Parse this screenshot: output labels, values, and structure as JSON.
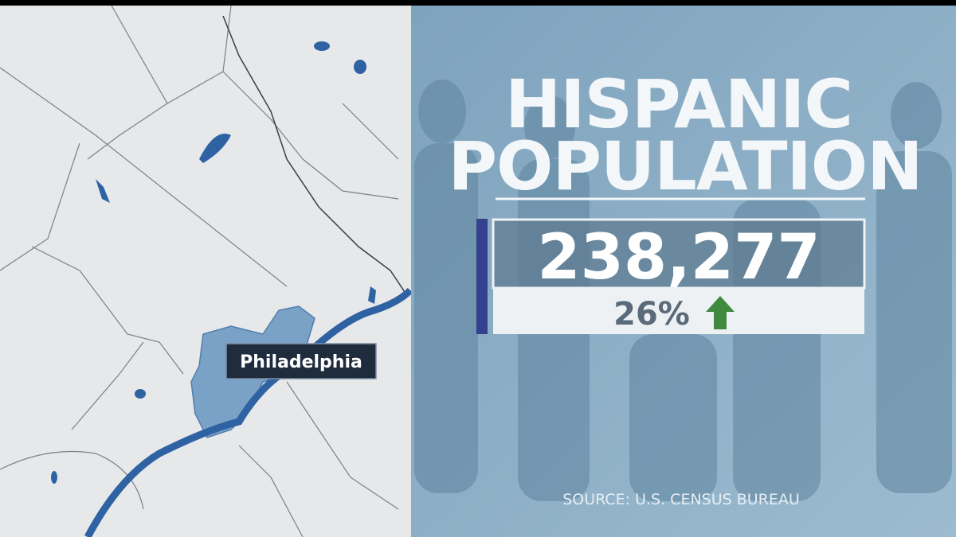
{
  "map": {
    "label": "Philadelphia"
  },
  "graphic": {
    "title": [
      "HISPANIC",
      "POPULATION"
    ],
    "value": "238,277",
    "change": "26%",
    "source": "SOURCE: U.S. CENSUS BUREAU"
  }
}
